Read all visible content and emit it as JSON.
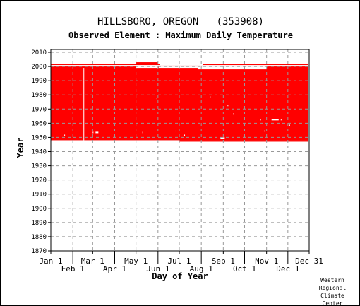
{
  "header": {
    "station": "HILLSBORO, OREGON   (353908)",
    "element": "Observed Element : Maximum Daily Temperature"
  },
  "credit": [
    "Western",
    "Regional",
    "Climate",
    "Center"
  ],
  "colors": {
    "data": "#ff0000",
    "grid": "#999999",
    "axis": "#000000"
  },
  "chart_data": {
    "type": "heatmap",
    "title": "HILLSBORO, OREGON   (353908)",
    "subtitle": "Observed Element : Maximum Daily Temperature",
    "xlabel": "Day of Year",
    "ylabel": "Year",
    "xlim": [
      1,
      365
    ],
    "ylim": [
      1870,
      2012
    ],
    "yticks": [
      1870,
      1880,
      1890,
      1900,
      1910,
      1920,
      1930,
      1940,
      1950,
      1960,
      1970,
      1980,
      1990,
      2000,
      2010
    ],
    "month_ticks": [
      {
        "label": "Jan 1",
        "day": 1,
        "row": "upper"
      },
      {
        "label": "Feb 1",
        "day": 32,
        "row": "lower"
      },
      {
        "label": "Mar 1",
        "day": 60,
        "row": "upper"
      },
      {
        "label": "Apr 1",
        "day": 91,
        "row": "lower"
      },
      {
        "label": "May 1",
        "day": 121,
        "row": "upper"
      },
      {
        "label": "Jun 1",
        "day": 152,
        "row": "lower"
      },
      {
        "label": "Jul 1",
        "day": 182,
        "row": "upper"
      },
      {
        "label": "Aug 1",
        "day": 213,
        "row": "lower"
      },
      {
        "label": "Sep 1",
        "day": 244,
        "row": "upper"
      },
      {
        "label": "Oct 1",
        "day": 274,
        "row": "lower"
      },
      {
        "label": "Nov 1",
        "day": 305,
        "row": "upper"
      },
      {
        "label": "Dec 1",
        "day": 335,
        "row": "lower"
      },
      {
        "label": "Dec 31",
        "day": 365,
        "row": "upper"
      }
    ],
    "grid": true,
    "coverage": [
      {
        "day_start": 1,
        "day_end": 364,
        "year_start": 1948,
        "year_end": 2002
      },
      {
        "day_start": 121,
        "day_end": 152,
        "year_start": 2002,
        "year_end": 2003
      },
      {
        "day_start": 182,
        "day_end": 213,
        "year_start": 1947,
        "year_end": 1948
      },
      {
        "day_start": 213,
        "day_end": 305,
        "year_start": 1947,
        "year_end": 1948
      },
      {
        "day_start": 305,
        "day_end": 364,
        "year_start": 1947,
        "year_end": 1948
      }
    ],
    "missing": [
      {
        "day_start": 1,
        "day_end": 364,
        "year_start": 2000,
        "year_end": 2001
      },
      {
        "day_start": 121,
        "day_end": 152,
        "year_start": 1999,
        "year_end": 2000
      },
      {
        "day_start": 153,
        "day_end": 213,
        "year_start": 1999,
        "year_end": 2000
      },
      {
        "day_start": 208,
        "day_end": 274,
        "year_start": 1998,
        "year_end": 2000
      },
      {
        "day_start": 274,
        "day_end": 305,
        "year_start": 1998,
        "year_end": 2000
      },
      {
        "day_start": 155,
        "day_end": 215,
        "year_start": 2001,
        "year_end": 2002
      },
      {
        "day_start": 47,
        "day_end": 48,
        "year_start": 1948,
        "year_end": 1999
      },
      {
        "day_start": 20,
        "day_end": 21,
        "year_start": 1951,
        "year_end": 1952
      },
      {
        "day_start": 60,
        "day_end": 61,
        "year_start": 1953,
        "year_end": 1954
      },
      {
        "day_start": 64,
        "day_end": 68,
        "year_start": 1953,
        "year_end": 1954
      },
      {
        "day_start": 130,
        "day_end": 131,
        "year_start": 1953,
        "year_end": 1954
      },
      {
        "day_start": 177,
        "day_end": 178,
        "year_start": 1954,
        "year_end": 1955
      },
      {
        "day_start": 240,
        "day_end": 246,
        "year_start": 1949,
        "year_end": 1950
      },
      {
        "day_start": 258,
        "day_end": 259,
        "year_start": 1966,
        "year_end": 1967
      },
      {
        "day_start": 250,
        "day_end": 251,
        "year_start": 1972,
        "year_end": 1973
      },
      {
        "day_start": 302,
        "day_end": 303,
        "year_start": 1954,
        "year_end": 1955
      },
      {
        "day_start": 312,
        "day_end": 322,
        "year_start": 1962,
        "year_end": 1963
      },
      {
        "day_start": 325,
        "day_end": 326,
        "year_start": 1962,
        "year_end": 1963
      },
      {
        "day_start": 296,
        "day_end": 297,
        "year_start": 1962,
        "year_end": 1963
      },
      {
        "day_start": 337,
        "day_end": 338,
        "year_start": 1958,
        "year_end": 1959
      },
      {
        "day_start": 189,
        "day_end": 190,
        "year_start": 1951,
        "year_end": 1952
      },
      {
        "day_start": 225,
        "day_end": 226,
        "year_start": 1978,
        "year_end": 1979
      },
      {
        "day_start": 150,
        "day_end": 151,
        "year_start": 1977,
        "year_end": 1978
      }
    ]
  }
}
